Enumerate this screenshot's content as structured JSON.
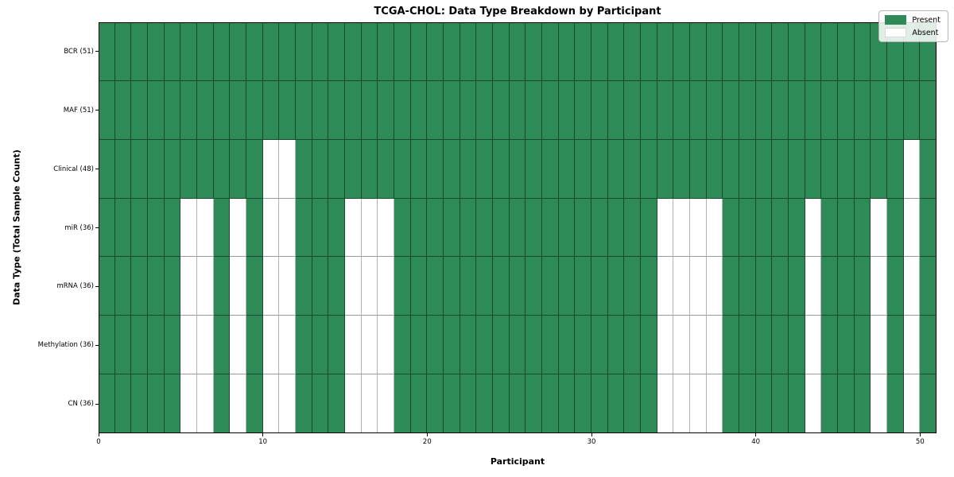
{
  "title": "TCGA-CHOL: Data Type Breakdown by Participant",
  "xlabel": "Participant",
  "ylabel": "Data Type (Total Sample Count)",
  "legend": {
    "present_label": "Present",
    "absent_label": "Absent"
  },
  "colors": {
    "present": "#2e8b57",
    "absent": "#ffffff"
  },
  "chart_data": {
    "type": "heatmap",
    "title": "TCGA-CHOL: Data Type Breakdown by Participant",
    "xlabel": "Participant",
    "ylabel": "Data Type (Total Sample Count)",
    "n_participants": 51,
    "x_range": [
      0,
      51
    ],
    "x_ticks": [
      0,
      10,
      20,
      30,
      40,
      50
    ],
    "grid": true,
    "legend_position": "upper right",
    "legend_entries": [
      "Present",
      "Absent"
    ],
    "rows": [
      {
        "label": "BCR (51)",
        "total_present": 51,
        "absent_participants": []
      },
      {
        "label": "MAF (51)",
        "total_present": 51,
        "absent_participants": []
      },
      {
        "label": "Clinical (48)",
        "total_present": 48,
        "absent_participants": [
          10,
          11,
          49
        ]
      },
      {
        "label": "miR (36)",
        "total_present": 36,
        "absent_participants": [
          5,
          6,
          8,
          10,
          11,
          15,
          16,
          17,
          34,
          35,
          36,
          37,
          43,
          47,
          49
        ]
      },
      {
        "label": "mRNA (36)",
        "total_present": 36,
        "absent_participants": [
          5,
          6,
          8,
          10,
          11,
          15,
          16,
          17,
          34,
          35,
          36,
          37,
          43,
          47,
          49
        ]
      },
      {
        "label": "Methylation (36)",
        "total_present": 36,
        "absent_participants": [
          5,
          6,
          8,
          10,
          11,
          15,
          16,
          17,
          34,
          35,
          36,
          37,
          43,
          47,
          49
        ]
      },
      {
        "label": "CN (36)",
        "total_present": 36,
        "absent_participants": [
          5,
          6,
          8,
          10,
          11,
          15,
          16,
          17,
          34,
          35,
          36,
          37,
          43,
          47,
          49
        ]
      }
    ]
  }
}
